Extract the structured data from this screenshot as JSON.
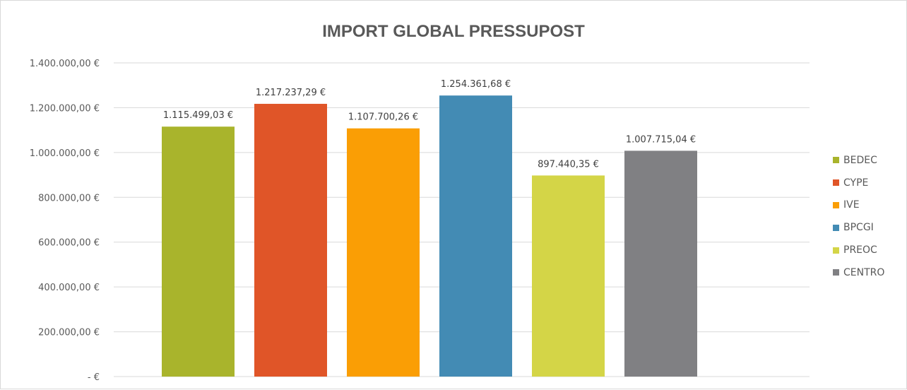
{
  "chart_data": {
    "type": "bar",
    "title": "IMPORT GLOBAL PRESSUPOST",
    "categories": [
      "BEDEC",
      "CYPE",
      "IVE",
      "BPCGI",
      "PREOC",
      "CENTRO"
    ],
    "values": [
      1115499.03,
      1217237.29,
      1107700.26,
      1254361.68,
      897440.35,
      1007715.04
    ],
    "value_labels": [
      "1.115.499,03 €",
      "1.217.237,29 €",
      "1.107.700,26 €",
      "1.254.361,68 €",
      "897.440,35 €",
      "1.007.715,04 €"
    ],
    "colors": [
      "#a9b42c",
      "#e05528",
      "#fa9e05",
      "#438bb4",
      "#d4d547",
      "#808083"
    ],
    "ylim": [
      0,
      1400000
    ],
    "y_ticks": [
      0,
      200000,
      400000,
      600000,
      800000,
      1000000,
      1200000,
      1400000
    ],
    "y_tick_labels": [
      "-  €",
      "200.000,00 €",
      "400.000,00 €",
      "600.000,00 €",
      "800.000,00 €",
      "1.000.000,00 €",
      "1.200.000,00 €",
      "1.400.000,00 €"
    ],
    "grid": true,
    "legend_position": "right"
  }
}
